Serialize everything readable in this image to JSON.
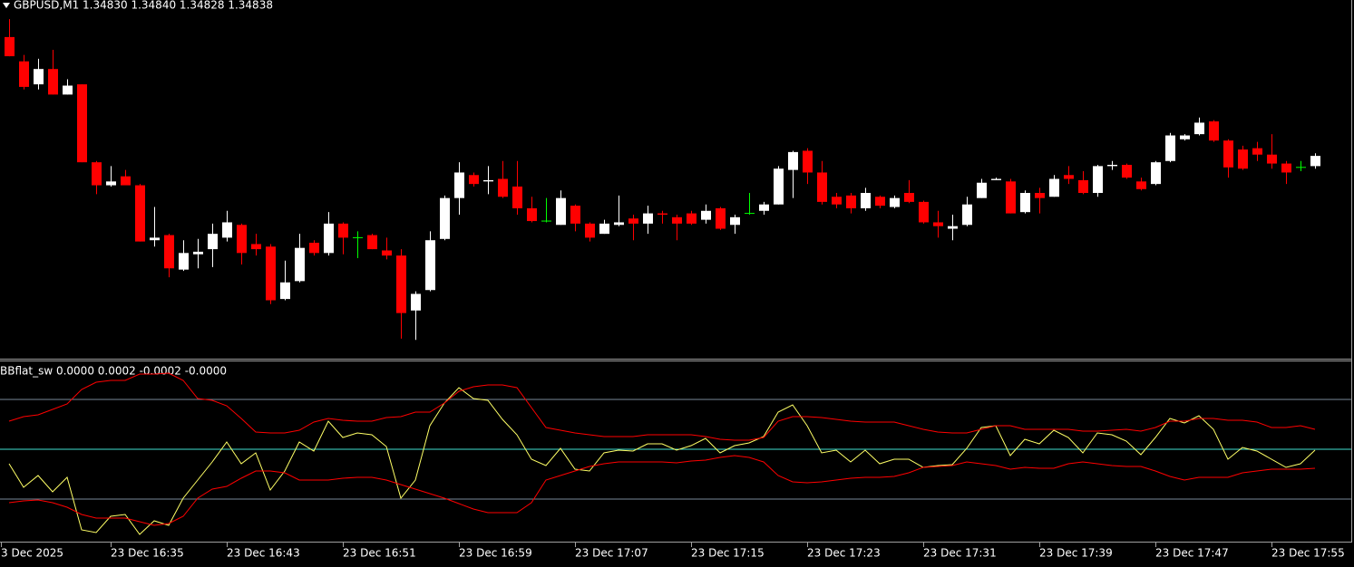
{
  "chart_data": [
    {
      "type": "candlestick",
      "title": "GBPUSD,M1  1.34830 1.34840 1.34828 1.34838",
      "ylim": [
        1.3468,
        1.3496
      ],
      "bull_color": "#ffffff",
      "bear_color": "#ff0000",
      "doji_color": "#00ff00",
      "open": [
        1.34931,
        1.34912,
        1.34894,
        1.34906,
        1.34886,
        1.34894,
        1.34833,
        1.34815,
        1.34822,
        1.34815,
        1.34772,
        1.34776,
        1.34749,
        1.34761,
        1.34765,
        1.34774,
        1.34784,
        1.34769,
        1.34767,
        1.34726,
        1.3474,
        1.3477,
        1.34762,
        1.34785,
        1.34774,
        1.34776,
        1.34764,
        1.3476,
        1.34717,
        1.34733,
        1.34773,
        1.34805,
        1.34823,
        1.34818,
        1.3482,
        1.34814,
        1.34797,
        1.34787,
        1.34784,
        1.34799,
        1.34785,
        1.34777,
        1.34784,
        1.34789,
        1.34785,
        1.34793,
        1.3479,
        1.34793,
        1.34788,
        1.34797,
        1.34784,
        1.34793,
        1.34795,
        1.348,
        1.34827,
        1.34842,
        1.34825,
        1.34806,
        1.34807,
        1.34797,
        1.34806,
        1.34798,
        1.34809,
        1.34802,
        1.34786,
        1.34781,
        1.34784,
        1.34805,
        1.34819,
        1.34818,
        1.34794,
        1.34809,
        1.34806,
        1.34823,
        1.34819,
        1.34809,
        1.3483,
        1.34831,
        1.34818,
        1.34816,
        1.34834,
        1.34851,
        1.34855,
        1.34865,
        1.3485,
        1.34843,
        1.34844,
        1.34839,
        1.34832,
        1.34829,
        1.3483
      ],
      "high": [
        1.34945,
        1.34917,
        1.34914,
        1.34921,
        1.34898,
        1.34894,
        1.34834,
        1.3483,
        1.34827,
        1.34816,
        1.34798,
        1.34777,
        1.34772,
        1.34773,
        1.34785,
        1.34795,
        1.34785,
        1.34777,
        1.34769,
        1.34756,
        1.34777,
        1.34772,
        1.34794,
        1.34786,
        1.34779,
        1.34777,
        1.34774,
        1.34765,
        1.34732,
        1.34779,
        1.34807,
        1.34833,
        1.34825,
        1.3483,
        1.34834,
        1.34834,
        1.34806,
        1.34805,
        1.34811,
        1.348,
        1.34786,
        1.34788,
        1.34807,
        1.34792,
        1.34799,
        1.34795,
        1.34792,
        1.34795,
        1.348,
        1.34798,
        1.34792,
        1.34809,
        1.34802,
        1.3483,
        1.34842,
        1.34844,
        1.34834,
        1.34809,
        1.34809,
        1.34813,
        1.34807,
        1.34807,
        1.34819,
        1.34803,
        1.34795,
        1.34792,
        1.34806,
        1.3482,
        1.34821,
        1.3482,
        1.34811,
        1.34813,
        1.34823,
        1.3483,
        1.34826,
        1.34831,
        1.34834,
        1.34832,
        1.34821,
        1.34834,
        1.34856,
        1.34855,
        1.34868,
        1.34866,
        1.34851,
        1.34846,
        1.34849,
        1.34855,
        1.34834,
        1.34834,
        1.3484
      ],
      "low": [
        1.34916,
        1.3489,
        1.3489,
        1.34886,
        1.34886,
        1.34833,
        1.34808,
        1.34814,
        1.34815,
        1.34771,
        1.34767,
        1.34743,
        1.34748,
        1.3475,
        1.34751,
        1.34771,
        1.34753,
        1.3476,
        1.34722,
        1.34725,
        1.34739,
        1.3476,
        1.3476,
        1.34761,
        1.34758,
        1.34765,
        1.34757,
        1.34695,
        1.34694,
        1.34732,
        1.34772,
        1.34792,
        1.34814,
        1.34808,
        1.34805,
        1.34792,
        1.34786,
        1.34786,
        1.34784,
        1.34779,
        1.34771,
        1.34777,
        1.34783,
        1.34772,
        1.34777,
        1.34785,
        1.34772,
        1.34784,
        1.34785,
        1.3478,
        1.34777,
        1.34792,
        1.34792,
        1.348,
        1.34805,
        1.34816,
        1.348,
        1.34797,
        1.34793,
        1.34795,
        1.34797,
        1.34797,
        1.34801,
        1.34785,
        1.34774,
        1.34772,
        1.34783,
        1.34805,
        1.34819,
        1.34793,
        1.34793,
        1.34793,
        1.34806,
        1.34816,
        1.34808,
        1.34806,
        1.34827,
        1.3482,
        1.34811,
        1.34815,
        1.34833,
        1.3485,
        1.34854,
        1.34849,
        1.34821,
        1.34827,
        1.34834,
        1.34828,
        1.34816,
        1.34826,
        1.34828
      ],
      "close": [
        1.34916,
        1.34892,
        1.34906,
        1.34886,
        1.34893,
        1.34833,
        1.34815,
        1.34818,
        1.34815,
        1.34771,
        1.34774,
        1.3475,
        1.34762,
        1.34763,
        1.34777,
        1.34786,
        1.34762,
        1.34765,
        1.34725,
        1.34739,
        1.34766,
        1.34762,
        1.34785,
        1.34774,
        1.34774,
        1.34765,
        1.3476,
        1.34715,
        1.3473,
        1.34772,
        1.34805,
        1.34825,
        1.34816,
        1.34819,
        1.34806,
        1.34797,
        1.34787,
        1.34787,
        1.34805,
        1.34785,
        1.34774,
        1.34785,
        1.34786,
        1.34785,
        1.34793,
        1.34792,
        1.34785,
        1.34785,
        1.34795,
        1.34781,
        1.3479,
        1.34793,
        1.348,
        1.34828,
        1.34841,
        1.34825,
        1.34802,
        1.348,
        1.34797,
        1.34809,
        1.34799,
        1.34805,
        1.34802,
        1.34786,
        1.34783,
        1.34783,
        1.348,
        1.34817,
        1.3482,
        1.34793,
        1.34809,
        1.34805,
        1.3482,
        1.3482,
        1.34809,
        1.3483,
        1.34831,
        1.34821,
        1.34812,
        1.34833,
        1.34854,
        1.34854,
        1.34864,
        1.3485,
        1.34829,
        1.34828,
        1.34839,
        1.34832,
        1.34825,
        1.34829,
        1.34838
      ]
    },
    {
      "type": "line",
      "title": "BBflat_sw 0.0000 0.0002 -0.0002 -0.0000",
      "ylim": [
        -0.00102,
        0.00098
      ],
      "levels": [
        {
          "value": 0.00055,
          "color": "#778899"
        },
        {
          "value": 0,
          "color": "#40e0d0"
        },
        {
          "value": -0.00055,
          "color": "#778899"
        }
      ],
      "x_labels": [
        "3 Dec 2025",
        "23 Dec 16:35",
        "23 Dec 16:43",
        "23 Dec 16:51",
        "23 Dec 16:59",
        "23 Dec 17:07",
        "23 Dec 17:15",
        "23 Dec 17:23",
        "23 Dec 17:31",
        "23 Dec 17:39",
        "23 Dec 17:47",
        "23 Dec 17:55"
      ],
      "series": [
        {
          "color": "#ffff66",
          "values": [
            -0.00016,
            -0.00042,
            -0.00029,
            -0.00047,
            -0.00031,
            -0.00089,
            -0.00092,
            -0.00074,
            -0.00072,
            -0.00094,
            -0.00079,
            -0.00084,
            -0.00054,
            -0.00034,
            -0.00014,
            8e-05,
            -0.00016,
            -4e-05,
            -0.00045,
            -0.00024,
            8e-05,
            -2e-05,
            0.00031,
            0.00013,
            0.00018,
            0.00016,
            3e-05,
            -0.00054,
            -0.00034,
            0.00026,
            0.00051,
            0.00068,
            0.00056,
            0.00054,
            0.00033,
            0.00016,
            -0.00011,
            -0.00018,
            1e-05,
            -0.00022,
            -0.00024,
            -4e-05,
            -1e-05,
            -2e-05,
            6e-05,
            6e-05,
            -1e-05,
            4e-05,
            0.00012,
            -4e-05,
            4e-05,
            7e-05,
            0.00014,
            0.00041,
            0.00049,
            0.00026,
            -4e-05,
            -1e-05,
            -0.00014,
            -1e-05,
            -0.00016,
            -0.00011,
            -0.00011,
            -0.0002,
            -0.00018,
            -0.00017,
            1e-05,
            0.00024,
            0.00026,
            -7e-05,
            0.00011,
            6e-05,
            0.00021,
            0.00013,
            -4e-05,
            0.00018,
            0.00016,
            9e-05,
            -6e-05,
            0.00013,
            0.00034,
            0.00029,
            0.00037,
            0.00022,
            -0.00011,
            2e-05,
            -2e-05,
            -0.00011,
            -0.0002,
            -0.00016,
            -1e-05
          ]
        },
        {
          "color": "#ff0000",
          "values": [
            0.00031,
            0.00036,
            0.00038,
            0.00044,
            0.0005,
            0.00066,
            0.00074,
            0.00076,
            0.00076,
            0.00083,
            0.00083,
            0.00084,
            0.00076,
            0.00056,
            0.00054,
            0.00048,
            0.00034,
            0.00019,
            0.00018,
            0.00018,
            0.00021,
            0.0003,
            0.00034,
            0.00032,
            0.00031,
            0.00031,
            0.00035,
            0.00036,
            0.00041,
            0.00041,
            0.00051,
            0.00064,
            0.00069,
            0.00071,
            0.00071,
            0.00068,
            0.00046,
            0.00024,
            0.00021,
            0.00018,
            0.00016,
            0.00014,
            0.00014,
            0.00014,
            0.00016,
            0.00016,
            0.00016,
            0.00016,
            0.00014,
            0.00011,
            0.0001,
            0.0001,
            0.00013,
            0.00031,
            0.00036,
            0.00036,
            0.00035,
            0.00033,
            0.00031,
            0.0003,
            0.0003,
            0.0003,
            0.00026,
            0.00022,
            0.00019,
            0.00018,
            0.00018,
            0.00022,
            0.00026,
            0.00026,
            0.00022,
            0.00022,
            0.00022,
            0.00022,
            0.0002,
            0.0002,
            0.00021,
            0.00022,
            0.0002,
            0.00024,
            0.00031,
            0.00031,
            0.00034,
            0.00034,
            0.00032,
            0.00032,
            0.0003,
            0.00024,
            0.00024,
            0.00026,
            0.00022
          ]
        },
        {
          "color": "#ff0000",
          "values": [
            -0.00059,
            -0.00057,
            -0.00056,
            -0.00059,
            -0.00064,
            -0.00072,
            -0.00076,
            -0.00076,
            -0.00076,
            -0.0008,
            -0.00084,
            -0.00082,
            -0.00074,
            -0.00054,
            -0.00044,
            -0.00041,
            -0.00032,
            -0.00024,
            -0.00024,
            -0.00026,
            -0.00034,
            -0.00034,
            -0.00034,
            -0.00032,
            -0.00031,
            -0.00031,
            -0.00034,
            -0.00039,
            -0.00044,
            -0.00049,
            -0.00054,
            -0.0006,
            -0.00066,
            -0.0007,
            -0.0007,
            -0.0007,
            -0.00059,
            -0.00034,
            -0.00029,
            -0.00024,
            -0.00019,
            -0.00016,
            -0.00014,
            -0.00014,
            -0.00014,
            -0.00014,
            -0.00015,
            -0.00013,
            -0.00012,
            -9e-05,
            -7e-05,
            -9e-05,
            -0.00014,
            -0.00029,
            -0.00036,
            -0.00037,
            -0.00036,
            -0.00034,
            -0.00032,
            -0.00031,
            -0.00031,
            -0.0003,
            -0.00026,
            -0.0002,
            -0.00019,
            -0.00018,
            -0.00014,
            -0.00016,
            -0.00018,
            -0.00022,
            -0.0002,
            -0.00021,
            -0.00021,
            -0.00016,
            -0.00014,
            -0.00016,
            -0.00018,
            -0.00019,
            -0.00019,
            -0.00024,
            -0.0003,
            -0.00034,
            -0.00031,
            -0.00031,
            -0.00031,
            -0.00026,
            -0.00024,
            -0.00022,
            -0.00022,
            -0.00022,
            -0.00021
          ]
        }
      ]
    }
  ]
}
